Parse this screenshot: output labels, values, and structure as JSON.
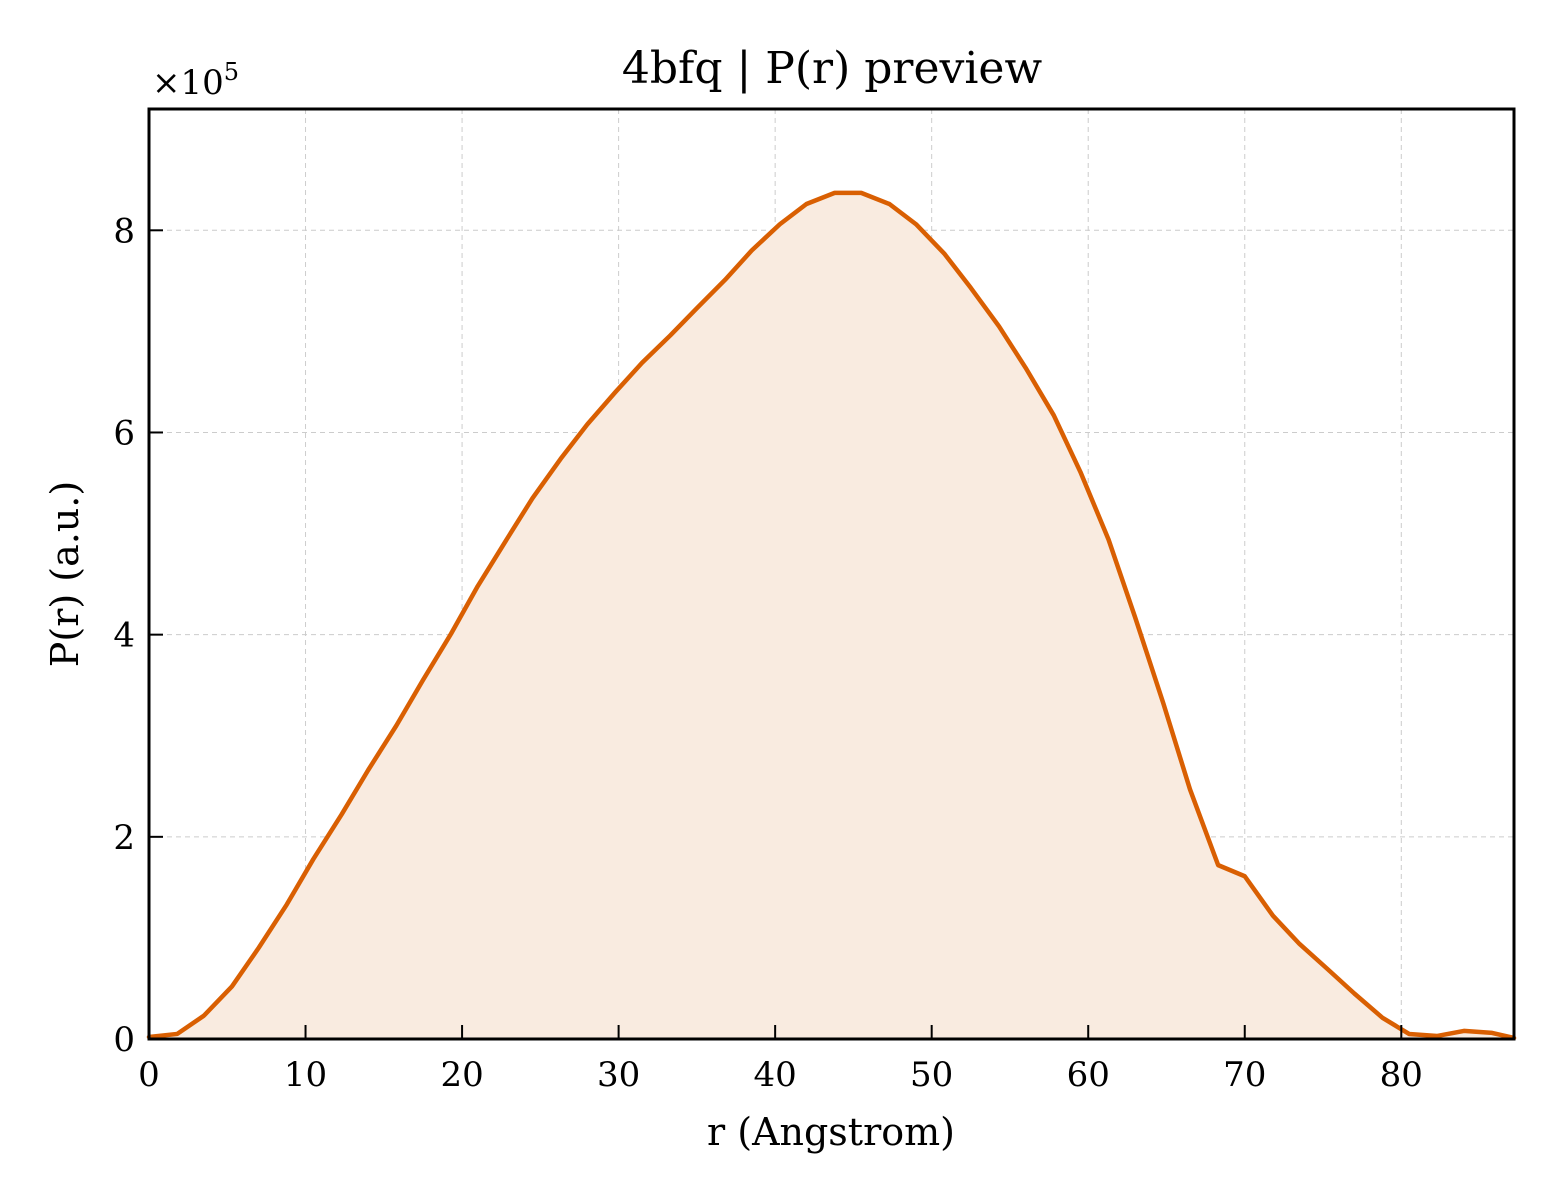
{
  "chart_data": {
    "type": "area",
    "title": "4bfq | P(r) preview",
    "xlabel": "r (Angstrom)",
    "ylabel": "P(r) (a.u.)",
    "y_multiplier_base": "×10",
    "y_multiplier_exp": "5",
    "xlim": [
      0,
      87.2
    ],
    "ylim": [
      0,
      9.2
    ],
    "xticks": [
      0,
      10,
      20,
      30,
      40,
      50,
      60,
      70,
      80
    ],
    "yticks": [
      0,
      2,
      4,
      6,
      8
    ],
    "xtick_labels": [
      "0",
      "10",
      "20",
      "30",
      "40",
      "50",
      "60",
      "70",
      "80"
    ],
    "ytick_labels": [
      "0",
      "2",
      "4",
      "6",
      "8"
    ],
    "grid": true,
    "line_color": "#d95f02",
    "fill_color": "#f9ebe0",
    "series": [
      {
        "x": [
          0,
          1.8,
          3.5,
          5.3,
          7.0,
          8.8,
          10.5,
          12.3,
          14.0,
          15.8,
          17.5,
          19.3,
          21.0,
          22.8,
          24.5,
          26.3,
          28.0,
          29.8,
          31.5,
          33.3,
          35.0,
          36.8,
          38.5,
          40.3,
          42.0,
          43.8,
          45.5,
          47.3,
          49.0,
          50.8,
          52.5,
          54.3,
          56.0,
          57.8,
          59.5,
          61.3,
          63.0,
          64.8,
          66.5,
          68.3,
          70.0,
          71.8,
          73.5,
          75.3,
          77.0,
          78.8,
          80.5,
          82.3,
          84.0,
          85.8,
          87.2
        ],
        "values": [
          0.02,
          0.05,
          0.23,
          0.52,
          0.9,
          1.33,
          1.78,
          2.22,
          2.66,
          3.1,
          3.55,
          4.01,
          4.48,
          4.93,
          5.35,
          5.74,
          6.08,
          6.4,
          6.69,
          6.96,
          7.23,
          7.51,
          7.8,
          8.06,
          8.26,
          8.37,
          8.37,
          8.26,
          8.06,
          7.77,
          7.43,
          7.05,
          6.64,
          6.17,
          5.61,
          4.94,
          4.17,
          3.32,
          2.47,
          1.72,
          1.61,
          1.22,
          0.94,
          0.69,
          0.45,
          0.21,
          0.05,
          0.03,
          0.08,
          0.06,
          0.01
        ]
      }
    ]
  }
}
